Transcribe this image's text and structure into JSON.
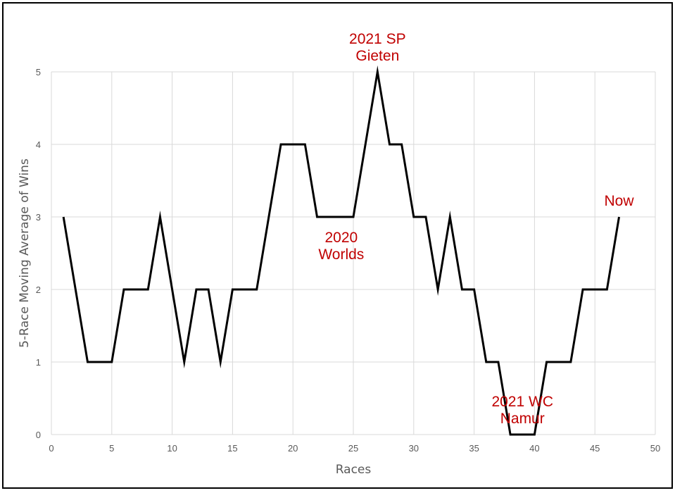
{
  "chart_data": {
    "type": "line",
    "xlabel": "Races",
    "ylabel": "5-Race Moving Average of Wins",
    "xlim": [
      0,
      50
    ],
    "ylim": [
      0,
      5
    ],
    "xticks": [
      0,
      5,
      10,
      15,
      20,
      25,
      30,
      35,
      40,
      45,
      50
    ],
    "yticks": [
      0,
      1,
      2,
      3,
      4,
      5
    ],
    "grid": true,
    "legend": "none",
    "series": [
      {
        "color": "#000000",
        "x": [
          1,
          2,
          3,
          4,
          5,
          6,
          7,
          8,
          9,
          10,
          11,
          12,
          13,
          14,
          15,
          16,
          17,
          18,
          19,
          20,
          21,
          22,
          23,
          24,
          25,
          26,
          27,
          28,
          29,
          30,
          31,
          32,
          33,
          34,
          35,
          36,
          37,
          38,
          39,
          40,
          41,
          42,
          43,
          44,
          45,
          46,
          47
        ],
        "y": [
          3,
          2,
          1,
          1,
          1,
          2,
          2,
          2,
          3,
          2,
          1,
          2,
          2,
          1,
          2,
          2,
          2,
          3,
          4,
          4,
          4,
          3,
          3,
          3,
          3,
          4,
          5,
          4,
          4,
          3,
          3,
          2,
          3,
          2,
          2,
          1,
          1,
          0,
          0,
          0,
          1,
          1,
          1,
          2,
          2,
          2,
          3
        ]
      }
    ],
    "annotations": [
      {
        "lines": [
          "2021 SP",
          "Gieten"
        ],
        "x": 27,
        "y": 5,
        "anchor": "above",
        "color": "#c00000"
      },
      {
        "lines": [
          "2020",
          "Worlds"
        ],
        "x": 24,
        "y": 3,
        "anchor": "below",
        "color": "#c00000"
      },
      {
        "lines": [
          "2021 WC",
          "Namur"
        ],
        "x": 39,
        "y": 0,
        "anchor": "above",
        "color": "#c00000"
      },
      {
        "lines": [
          "Now"
        ],
        "x": 47,
        "y": 3,
        "anchor": "above",
        "color": "#c00000"
      }
    ]
  }
}
